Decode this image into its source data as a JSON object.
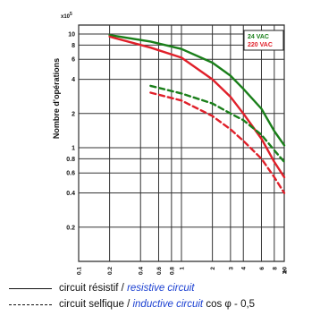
{
  "chart_data": {
    "type": "line",
    "ylabel": "Nombre d'opérations",
    "y_multiplier": "x10",
    "y_multiplier_exponent": "5",
    "yscale": "log",
    "xscale": "log",
    "ylim": [
      0.1,
      12
    ],
    "y_ticks": [
      {
        "v": 10,
        "label": "10"
      },
      {
        "v": 8,
        "label": "8"
      },
      {
        "v": 6,
        "label": "6"
      },
      {
        "v": 4,
        "label": "4"
      },
      {
        "v": 2,
        "label": "2"
      },
      {
        "v": 1,
        "label": "1"
      },
      {
        "v": 0.8,
        "label": "0.8"
      },
      {
        "v": 0.6,
        "label": "0.6"
      },
      {
        "v": 0.4,
        "label": "0.4"
      },
      {
        "v": 0.2,
        "label": "0.2"
      }
    ],
    "xlim": [
      0.1,
      10
    ],
    "x_ticks": [
      {
        "v": 0.1,
        "label": "0.1"
      },
      {
        "v": 0.2,
        "label": "0.2"
      },
      {
        "v": 0.4,
        "label": "0.4"
      },
      {
        "v": 0.6,
        "label": "0.6"
      },
      {
        "v": 0.8,
        "label": "0.8"
      },
      {
        "v": 1,
        "label": "1"
      },
      {
        "v": 2,
        "label": "2"
      },
      {
        "v": 3,
        "label": "3"
      },
      {
        "v": 4,
        "label": "4"
      },
      {
        "v": 6,
        "label": "6"
      },
      {
        "v": 8,
        "label": "8"
      },
      {
        "v": 10,
        "label": "10"
      }
    ],
    "x_unit": "A",
    "legend_box": {
      "items": [
        {
          "label": "24 VAC",
          "color": "#1a7f1a"
        },
        {
          "label": "220 VAC",
          "color": "#e0202a"
        }
      ]
    },
    "series": [
      {
        "name": "24 VAC",
        "style": "solid",
        "color": "#1a7f1a",
        "points": [
          [
            0.2,
            9.8
          ],
          [
            0.5,
            8.6
          ],
          [
            1,
            7.4
          ],
          [
            2,
            5.6
          ],
          [
            3,
            4.3
          ],
          [
            4,
            3.3
          ],
          [
            6,
            2.2
          ],
          [
            8,
            1.4
          ],
          [
            10,
            1.05
          ]
        ]
      },
      {
        "name": "220 VAC",
        "style": "solid",
        "color": "#e0202a",
        "points": [
          [
            0.2,
            9.5
          ],
          [
            0.5,
            7.6
          ],
          [
            1,
            6.2
          ],
          [
            2,
            4.0
          ],
          [
            3,
            2.8
          ],
          [
            4,
            2.0
          ],
          [
            6,
            1.2
          ],
          [
            8,
            0.75
          ],
          [
            10,
            0.55
          ]
        ]
      },
      {
        "name": "24 VAC",
        "style": "dashed",
        "color": "#1a7f1a",
        "points": [
          [
            0.5,
            3.5
          ],
          [
            1,
            3.0
          ],
          [
            2,
            2.45
          ],
          [
            3,
            2.0
          ],
          [
            4,
            1.75
          ],
          [
            6,
            1.3
          ],
          [
            8,
            0.95
          ],
          [
            10,
            0.75
          ]
        ]
      },
      {
        "name": "220 VAC",
        "style": "dashed",
        "color": "#e0202a",
        "points": [
          [
            0.5,
            3.05
          ],
          [
            1,
            2.6
          ],
          [
            2,
            1.9
          ],
          [
            3,
            1.45
          ],
          [
            4,
            1.15
          ],
          [
            6,
            0.8
          ],
          [
            8,
            0.55
          ],
          [
            10,
            0.4
          ]
        ]
      }
    ]
  },
  "legend": {
    "resistive_fr": "circuit résistif",
    "resistive_sep": "/",
    "resistive_en": "resistive circuit",
    "inductive_fr": "circuit selfique",
    "inductive_sep": "/",
    "inductive_en": "inductive circuit",
    "inductive_suffix": "cos φ - 0,5"
  }
}
